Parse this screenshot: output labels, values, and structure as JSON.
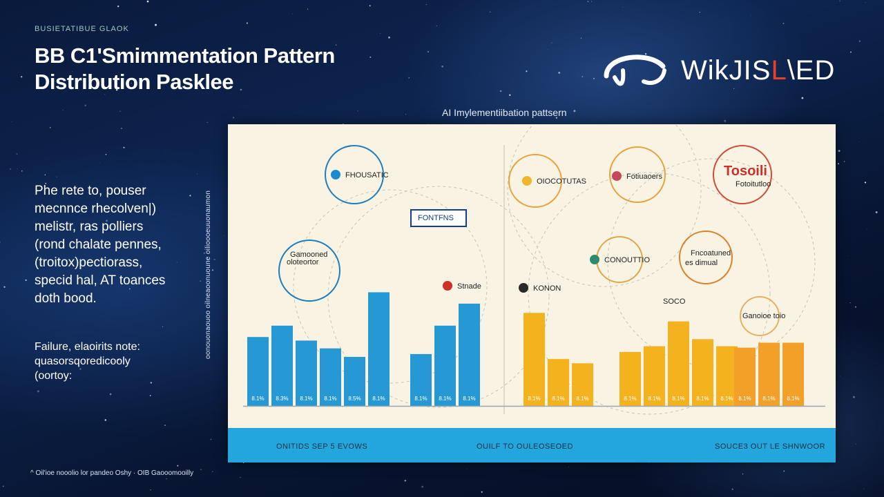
{
  "header": {
    "kicker": "BUSIETATIBUE GLAOK",
    "title_line1": "BB C1'Smimmentation Pattern",
    "title_line2": "Distribution Pasklee"
  },
  "logo": {
    "text_main": "WikJIS",
    "text_accent": "L",
    "text_end": "\\ED"
  },
  "sidebar": {
    "paragraph": [
      "Phe rete to, pouser",
      "mecnnce rhecolven|)",
      "melistr, ras polliers",
      "(rond chalate pennes,",
      "(troitox)pectiorass,",
      "specid hal, AT toances",
      "doth bood."
    ],
    "note": [
      "Failure, elaoirits note:",
      "quasorsqoredicooly",
      "(oortoy:"
    ],
    "vertical": "oonouonaouoo oilneaoonuoune oilioooeuuonaumon"
  },
  "footer": {
    "text": "^ Oil'ioe nooolio lor pandeo Oshy · OIB Gaooomooilly"
  },
  "colors": {
    "blue": "#2699d4",
    "yellow": "#f5b21f",
    "orange": "#f3a029",
    "panel": "#f8f3e3",
    "band": "#23a6dc"
  },
  "chart_data": {
    "type": "bar",
    "title": "AI Imylementiibation pattsern",
    "ylim": [
      0,
      175
    ],
    "groups": [
      {
        "color": "#2699d4",
        "values": [
          97,
          113,
          92,
          81,
          69,
          160
        ],
        "labels": [
          "8.1%",
          "8.3%",
          "8.1%",
          "8.1%",
          "8.5%",
          "8.1%"
        ]
      },
      {
        "color": "#2699d4",
        "values": [
          73,
          113,
          144
        ],
        "labels": [
          "8.1%",
          "8.1%",
          "8.1%"
        ]
      },
      {
        "color": "#f5b21f",
        "values": [
          131,
          66,
          60
        ],
        "labels": [
          "8.1%",
          "8.1%",
          "8.1%"
        ]
      },
      {
        "color": "#f5b21f",
        "values": [
          76,
          84,
          119,
          94,
          84
        ],
        "labels": [
          "8.1%",
          "8.1%",
          "8.1%",
          "8.1%",
          "8.1%"
        ]
      },
      {
        "color": "#f3a029",
        "values": [
          82,
          89,
          89
        ],
        "labels": [
          "8.1%",
          "8.1%",
          "8.1%"
        ]
      }
    ],
    "bottom_labels": [
      "ONITIDS SEP 5 EVOWS",
      "OUILF TO OULEOSEOED",
      "SOUCE3 OUT LE SHNWOOR"
    ],
    "annotations": [
      {
        "text": "FHOUSATIC",
        "style": "circle"
      },
      {
        "text": "FONTFNS",
        "style": "box"
      },
      {
        "text": "Gamooned",
        "style": "circle"
      },
      {
        "text": "oloteortor",
        "style": "none"
      },
      {
        "text": "Stnade",
        "style": "none"
      },
      {
        "text": "OIOCOTUTAS",
        "style": "circle"
      },
      {
        "text": "Fotiuaoers",
        "style": "circle"
      },
      {
        "text": "Tosoili",
        "style": "circle"
      },
      {
        "text": "Fotoitutloo",
        "style": "none"
      },
      {
        "text": "Fncoatuned",
        "style": "circle"
      },
      {
        "text": "es dimual",
        "style": "none"
      },
      {
        "text": "CONOUTTIO",
        "style": "circle"
      },
      {
        "text": "KONON",
        "style": "none"
      },
      {
        "text": "SOCO",
        "style": "none"
      },
      {
        "text": "Ganoioe toio",
        "style": "circle"
      }
    ]
  }
}
